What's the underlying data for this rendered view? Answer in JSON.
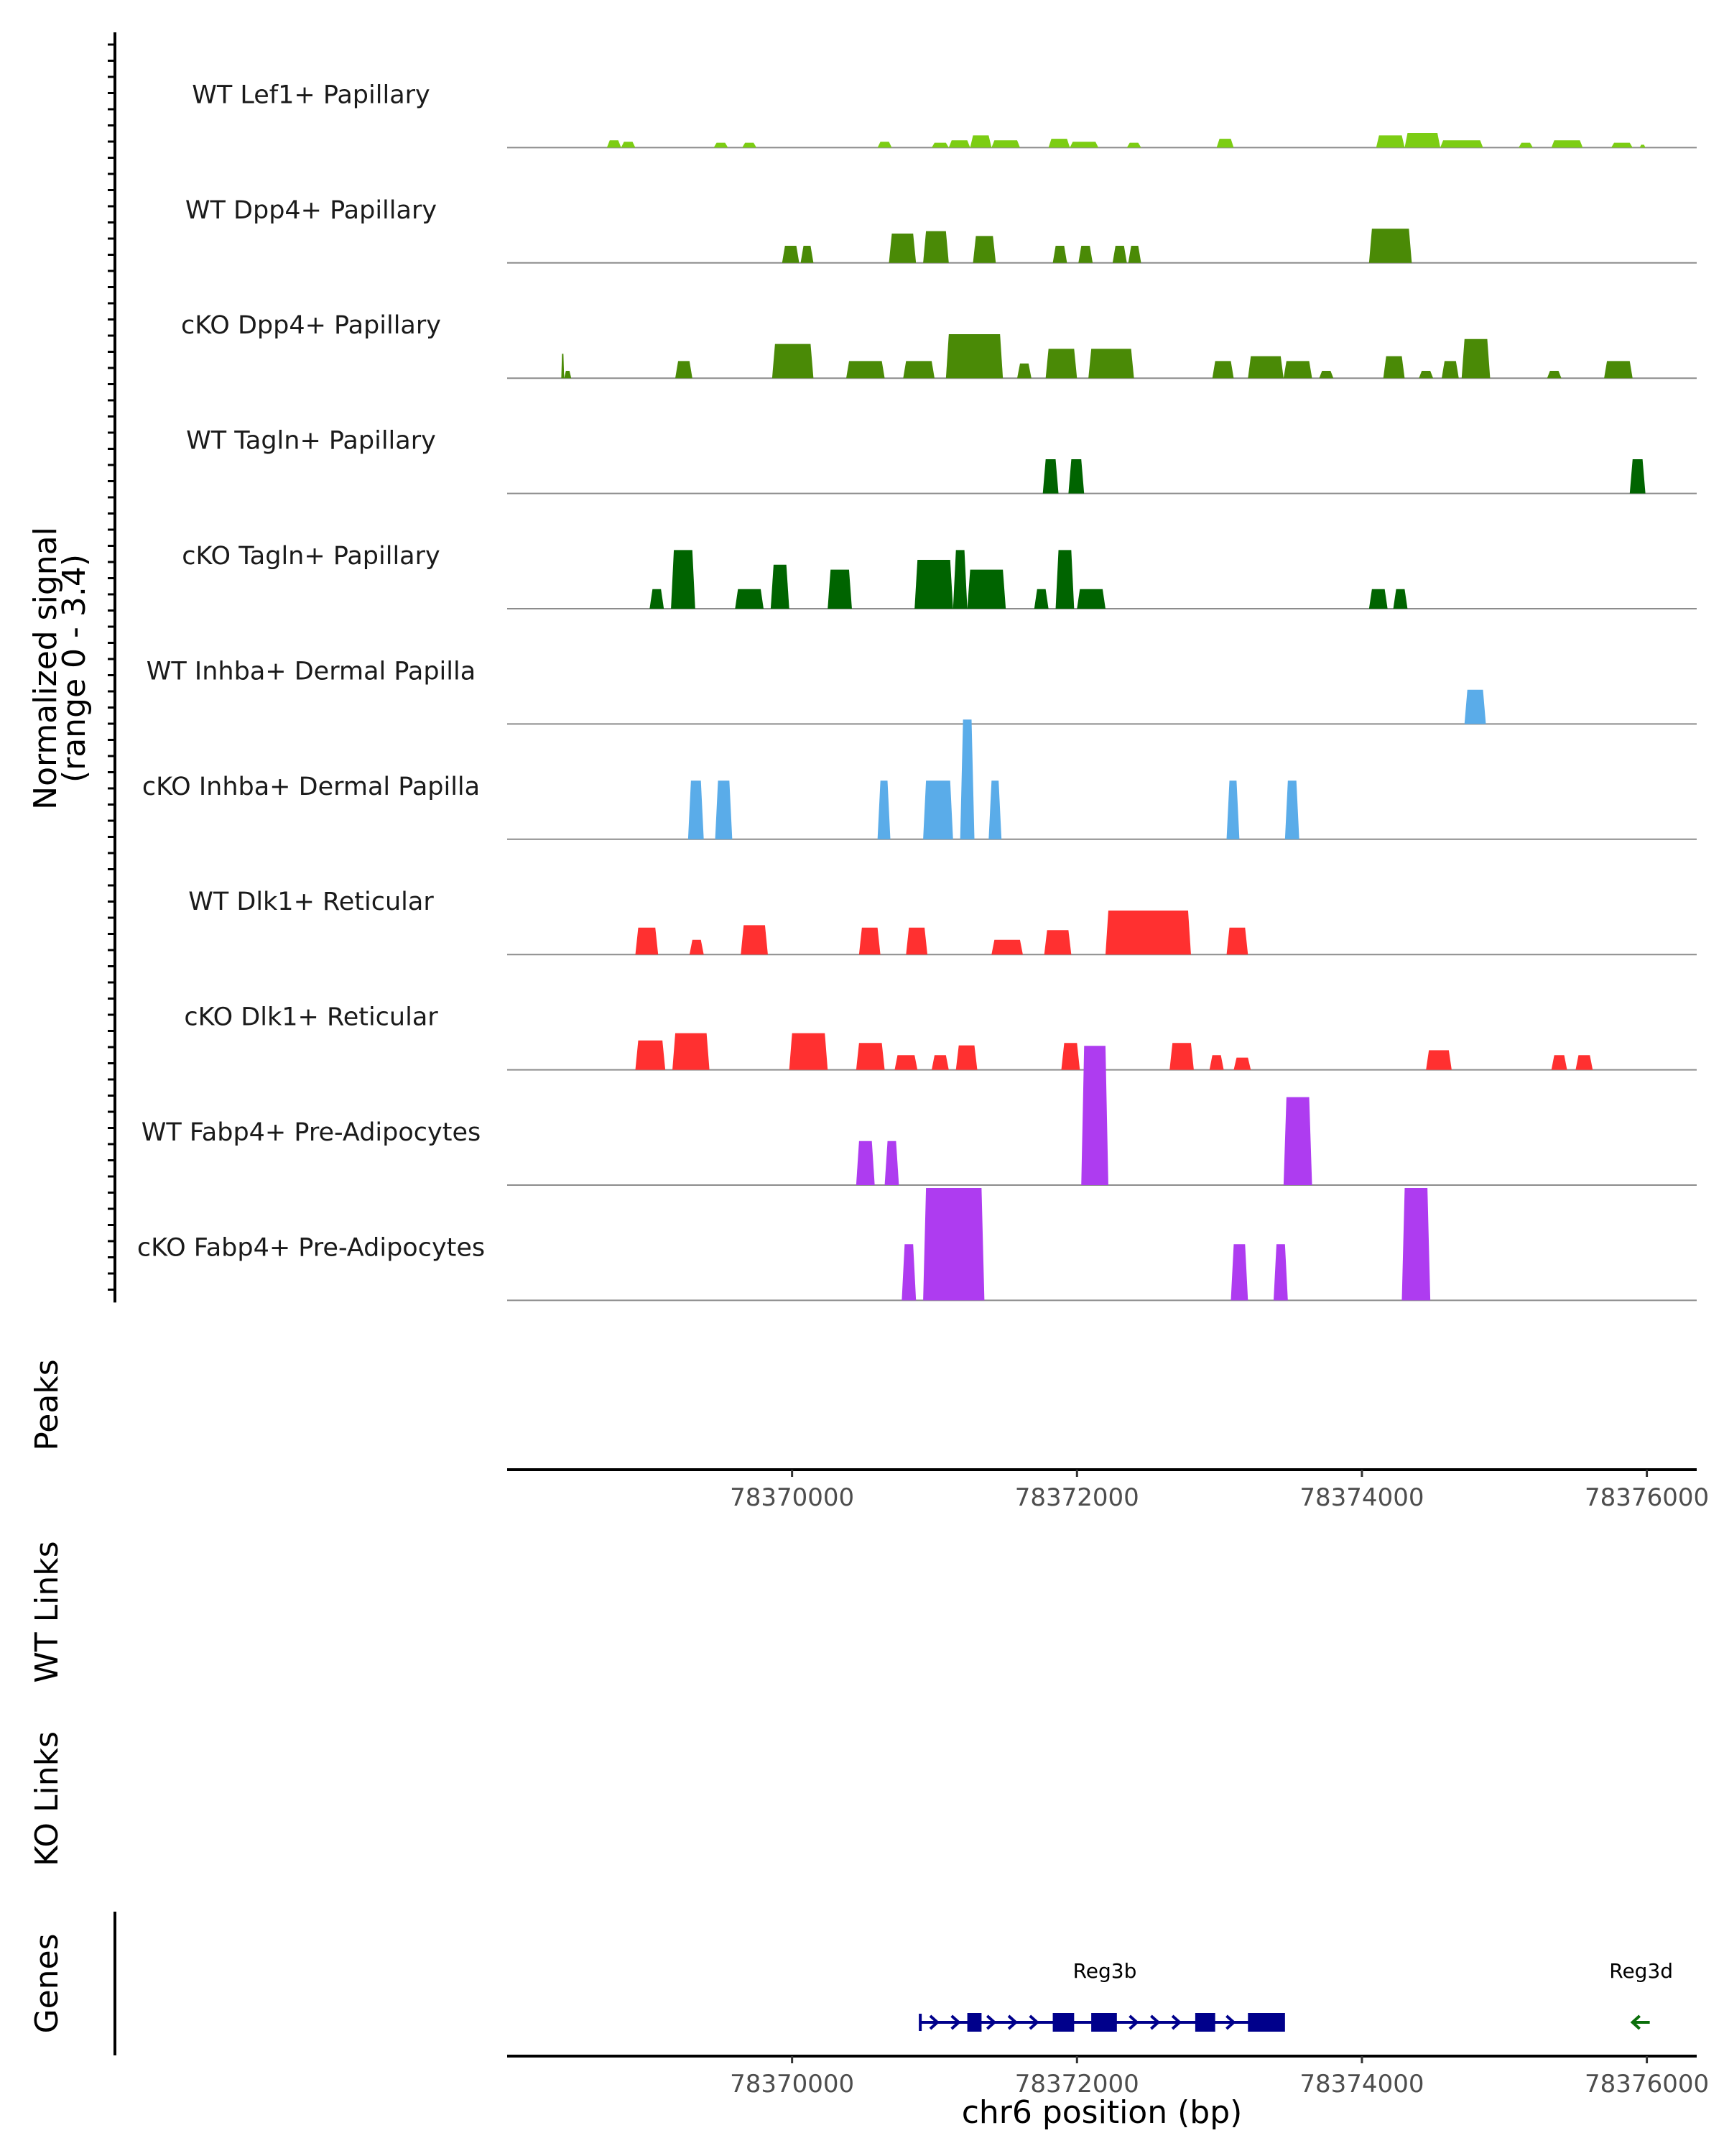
{
  "chart_data": {
    "type": "area",
    "title": "",
    "xlabel": "chr6 position (bp)",
    "ylabel": "Normalized signal\n(range 0 - 3.4)",
    "ylim": [
      0,
      3.4
    ],
    "xlim": [
      78368000,
      78376350
    ],
    "xticks": [
      78370000,
      78372000,
      78374000,
      78376000
    ],
    "xtick_labels": [
      "78370000",
      "78372000",
      "78374000",
      "78376000"
    ],
    "colors": {
      "lef1": "#7CCD14",
      "dpp4": "#4A8A06",
      "tagln": "#006400",
      "inhba": "#5AACE9",
      "dlk1": "#FF3030",
      "fabp4": "#AE3CF0",
      "gene": "#00008B",
      "gene_minus": "#0A6E0A"
    },
    "series": [
      {
        "name": "WT Lef1+ Papillary",
        "color": "lef1",
        "peaks": [
          [
            78368700,
            78368800,
            0.15
          ],
          [
            78368800,
            78368900,
            0.12
          ],
          [
            78369450,
            78369550,
            0.1
          ],
          [
            78369650,
            78369750,
            0.1
          ],
          [
            78370600,
            78370700,
            0.12
          ],
          [
            78370980,
            78371100,
            0.1
          ],
          [
            78371100,
            78371250,
            0.15
          ],
          [
            78371250,
            78371400,
            0.25
          ],
          [
            78371400,
            78371600,
            0.15
          ],
          [
            78371800,
            78371950,
            0.18
          ],
          [
            78371950,
            78372150,
            0.12
          ],
          [
            78372350,
            78372450,
            0.1
          ],
          [
            78372980,
            78373100,
            0.18
          ],
          [
            78374100,
            78374300,
            0.25
          ],
          [
            78374300,
            78374550,
            0.3
          ],
          [
            78374550,
            78374850,
            0.15
          ],
          [
            78375100,
            78375200,
            0.1
          ],
          [
            78375330,
            78375550,
            0.15
          ],
          [
            78375750,
            78375900,
            0.1
          ],
          [
            78375950,
            78375990,
            0.06
          ]
        ]
      },
      {
        "name": "WT Dpp4+ Papillary",
        "color": "dpp4",
        "peaks": [
          [
            78369930,
            78370050,
            0.35
          ],
          [
            78370060,
            78370150,
            0.35
          ],
          [
            78370680,
            78370870,
            0.6
          ],
          [
            78370920,
            78371100,
            0.65
          ],
          [
            78371270,
            78371430,
            0.55
          ],
          [
            78371830,
            78371930,
            0.35
          ],
          [
            78372010,
            78372110,
            0.35
          ],
          [
            78372250,
            78372350,
            0.35
          ],
          [
            78372360,
            78372450,
            0.35
          ],
          [
            78374050,
            78374350,
            0.7
          ]
        ]
      },
      {
        "name": "cKO Dpp4+ Papillary",
        "color": "dpp4",
        "peaks": [
          [
            78368380,
            78368400,
            0.5
          ],
          [
            78368400,
            78368450,
            0.15
          ],
          [
            78369180,
            78369300,
            0.35
          ],
          [
            78369860,
            78370150,
            0.7
          ],
          [
            78370380,
            78370650,
            0.35
          ],
          [
            78370780,
            78371000,
            0.35
          ],
          [
            78371080,
            78371480,
            0.9
          ],
          [
            78371580,
            78371680,
            0.3
          ],
          [
            78371780,
            78372000,
            0.6
          ],
          [
            78372080,
            78372400,
            0.6
          ],
          [
            78372950,
            78373100,
            0.35
          ],
          [
            78373200,
            78373450,
            0.45
          ],
          [
            78373450,
            78373650,
            0.35
          ],
          [
            78373700,
            78373800,
            0.15
          ],
          [
            78374150,
            78374300,
            0.45
          ],
          [
            78374400,
            78374500,
            0.15
          ],
          [
            78374560,
            78374680,
            0.35
          ],
          [
            78374700,
            78374900,
            0.8
          ],
          [
            78375300,
            78375400,
            0.15
          ],
          [
            78375700,
            78375900,
            0.35
          ]
        ]
      },
      {
        "name": "WT Tagln+ Papillary",
        "color": "tagln",
        "peaks": [
          [
            78371760,
            78371870,
            0.7
          ],
          [
            78371940,
            78372050,
            0.7
          ],
          [
            78375880,
            78375990,
            0.7
          ]
        ]
      },
      {
        "name": "cKO Tagln+ Papillary",
        "color": "tagln",
        "peaks": [
          [
            78369000,
            78369100,
            0.4
          ],
          [
            78369150,
            78369320,
            1.2
          ],
          [
            78369600,
            78369800,
            0.4
          ],
          [
            78369850,
            78369980,
            0.9
          ],
          [
            78370250,
            78370420,
            0.8
          ],
          [
            78370860,
            78371130,
            1.0
          ],
          [
            78371130,
            78371230,
            1.2
          ],
          [
            78371230,
            78371500,
            0.8
          ],
          [
            78371700,
            78371800,
            0.4
          ],
          [
            78371850,
            78371980,
            1.2
          ],
          [
            78372000,
            78372200,
            0.4
          ],
          [
            78374050,
            78374180,
            0.4
          ],
          [
            78374220,
            78374320,
            0.4
          ]
        ]
      },
      {
        "name": "WT Inhba+ Dermal Papilla",
        "color": "inhba",
        "peaks": [
          [
            78374720,
            78374870,
            0.7
          ]
        ]
      },
      {
        "name": "cKO Inhba+ Dermal Papilla",
        "color": "inhba",
        "peaks": [
          [
            78369270,
            78369380,
            1.2
          ],
          [
            78369460,
            78369580,
            1.2
          ],
          [
            78370600,
            78370690,
            1.2
          ],
          [
            78370920,
            78371130,
            1.2
          ],
          [
            78371180,
            78371280,
            2.45
          ],
          [
            78371380,
            78371470,
            1.2
          ],
          [
            78373050,
            78373140,
            1.2
          ],
          [
            78373460,
            78373560,
            1.2
          ]
        ]
      },
      {
        "name": "WT Dlk1+ Reticular",
        "color": "dlk1",
        "peaks": [
          [
            78368900,
            78369060,
            0.55
          ],
          [
            78369280,
            78369380,
            0.3
          ],
          [
            78369640,
            78369830,
            0.6
          ],
          [
            78370470,
            78370620,
            0.55
          ],
          [
            78370800,
            78370950,
            0.55
          ],
          [
            78371400,
            78371620,
            0.3
          ],
          [
            78371770,
            78371960,
            0.5
          ],
          [
            78372200,
            78372800,
            0.9
          ],
          [
            78373050,
            78373200,
            0.55
          ]
        ]
      },
      {
        "name": "cKO Dlk1+ Reticular",
        "color": "dlk1",
        "peaks": [
          [
            78368900,
            78369110,
            0.6
          ],
          [
            78369160,
            78369420,
            0.75
          ],
          [
            78369980,
            78370250,
            0.75
          ],
          [
            78370450,
            78370650,
            0.55
          ],
          [
            78370720,
            78370880,
            0.3
          ],
          [
            78370980,
            78371100,
            0.3
          ],
          [
            78371150,
            78371300,
            0.5
          ],
          [
            78371890,
            78372020,
            0.55
          ],
          [
            78372090,
            78372200,
            0.3
          ],
          [
            78372650,
            78372820,
            0.55
          ],
          [
            78372930,
            78373030,
            0.3
          ],
          [
            78373100,
            78373220,
            0.25
          ],
          [
            78374450,
            78374630,
            0.4
          ],
          [
            78375330,
            78375440,
            0.3
          ],
          [
            78375500,
            78375620,
            0.3
          ]
        ]
      },
      {
        "name": "WT Fabp4+ Pre-Adipocytes",
        "color": "fabp4",
        "peaks": [
          [
            78370450,
            78370580,
            0.9
          ],
          [
            78370650,
            78370750,
            0.9
          ],
          [
            78372030,
            78372220,
            2.85
          ],
          [
            78373450,
            78373650,
            1.8
          ]
        ]
      },
      {
        "name": "cKO Fabp4+ Pre-Adipocytes",
        "color": "fabp4",
        "peaks": [
          [
            78370770,
            78370870,
            1.15
          ],
          [
            78370920,
            78371350,
            2.3
          ],
          [
            78373080,
            78373200,
            1.15
          ],
          [
            78373380,
            78373480,
            1.15
          ],
          [
            78374280,
            78374480,
            2.3
          ]
        ]
      }
    ],
    "panels": {
      "peaks_label": "Peaks",
      "wt_links_label": "WT Links",
      "ko_links_label": "KO Links",
      "genes_label": "Genes"
    },
    "genes": [
      {
        "name": "Reg3b",
        "strand": "+",
        "start": 78370900,
        "end": 78373450,
        "exons": [
          [
            78371230,
            78371330
          ],
          [
            78371830,
            78371980
          ],
          [
            78372100,
            78372280
          ],
          [
            78372830,
            78372970
          ],
          [
            78373200,
            78373460
          ]
        ],
        "arrows": [
          78371000,
          78371150,
          78371400,
          78371550,
          78371700,
          78372400,
          78372550,
          78372700,
          78373080
        ],
        "color": "gene"
      },
      {
        "name": "Reg3d",
        "strand": "-",
        "start": 78375900,
        "end": 78376020,
        "exons": [],
        "arrows": [
          78375980
        ],
        "color": "gene_minus"
      }
    ]
  }
}
